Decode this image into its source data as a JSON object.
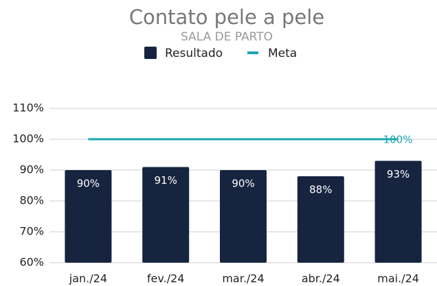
{
  "chart_data": {
    "type": "bar",
    "title": "Contato pele a pele",
    "subtitle": "SALA DE PARTO",
    "categories": [
      "jan./24",
      "fev./24",
      "mar./24",
      "abr./24",
      "mai./24"
    ],
    "series": [
      {
        "name": "Resultado",
        "type": "bar",
        "color": "#16243f",
        "values": [
          90,
          91,
          90,
          88,
          93
        ],
        "value_labels": [
          "90%",
          "91%",
          "90%",
          "88%",
          "93%"
        ]
      },
      {
        "name": "Meta",
        "type": "line",
        "color": "#1aa7b5",
        "values": [
          100,
          100,
          100,
          100,
          100
        ],
        "value_labels": [
          null,
          null,
          null,
          null,
          "100%"
        ]
      }
    ],
    "ylim": [
      60,
      110
    ],
    "yticks": [
      {
        "value": 60,
        "label": "60%"
      },
      {
        "value": 70,
        "label": "70%"
      },
      {
        "value": 80,
        "label": "80%"
      },
      {
        "value": 90,
        "label": "90%"
      },
      {
        "value": 100,
        "label": "100%"
      },
      {
        "value": 110,
        "label": "110%"
      }
    ],
    "grid": true,
    "legend": "top"
  }
}
